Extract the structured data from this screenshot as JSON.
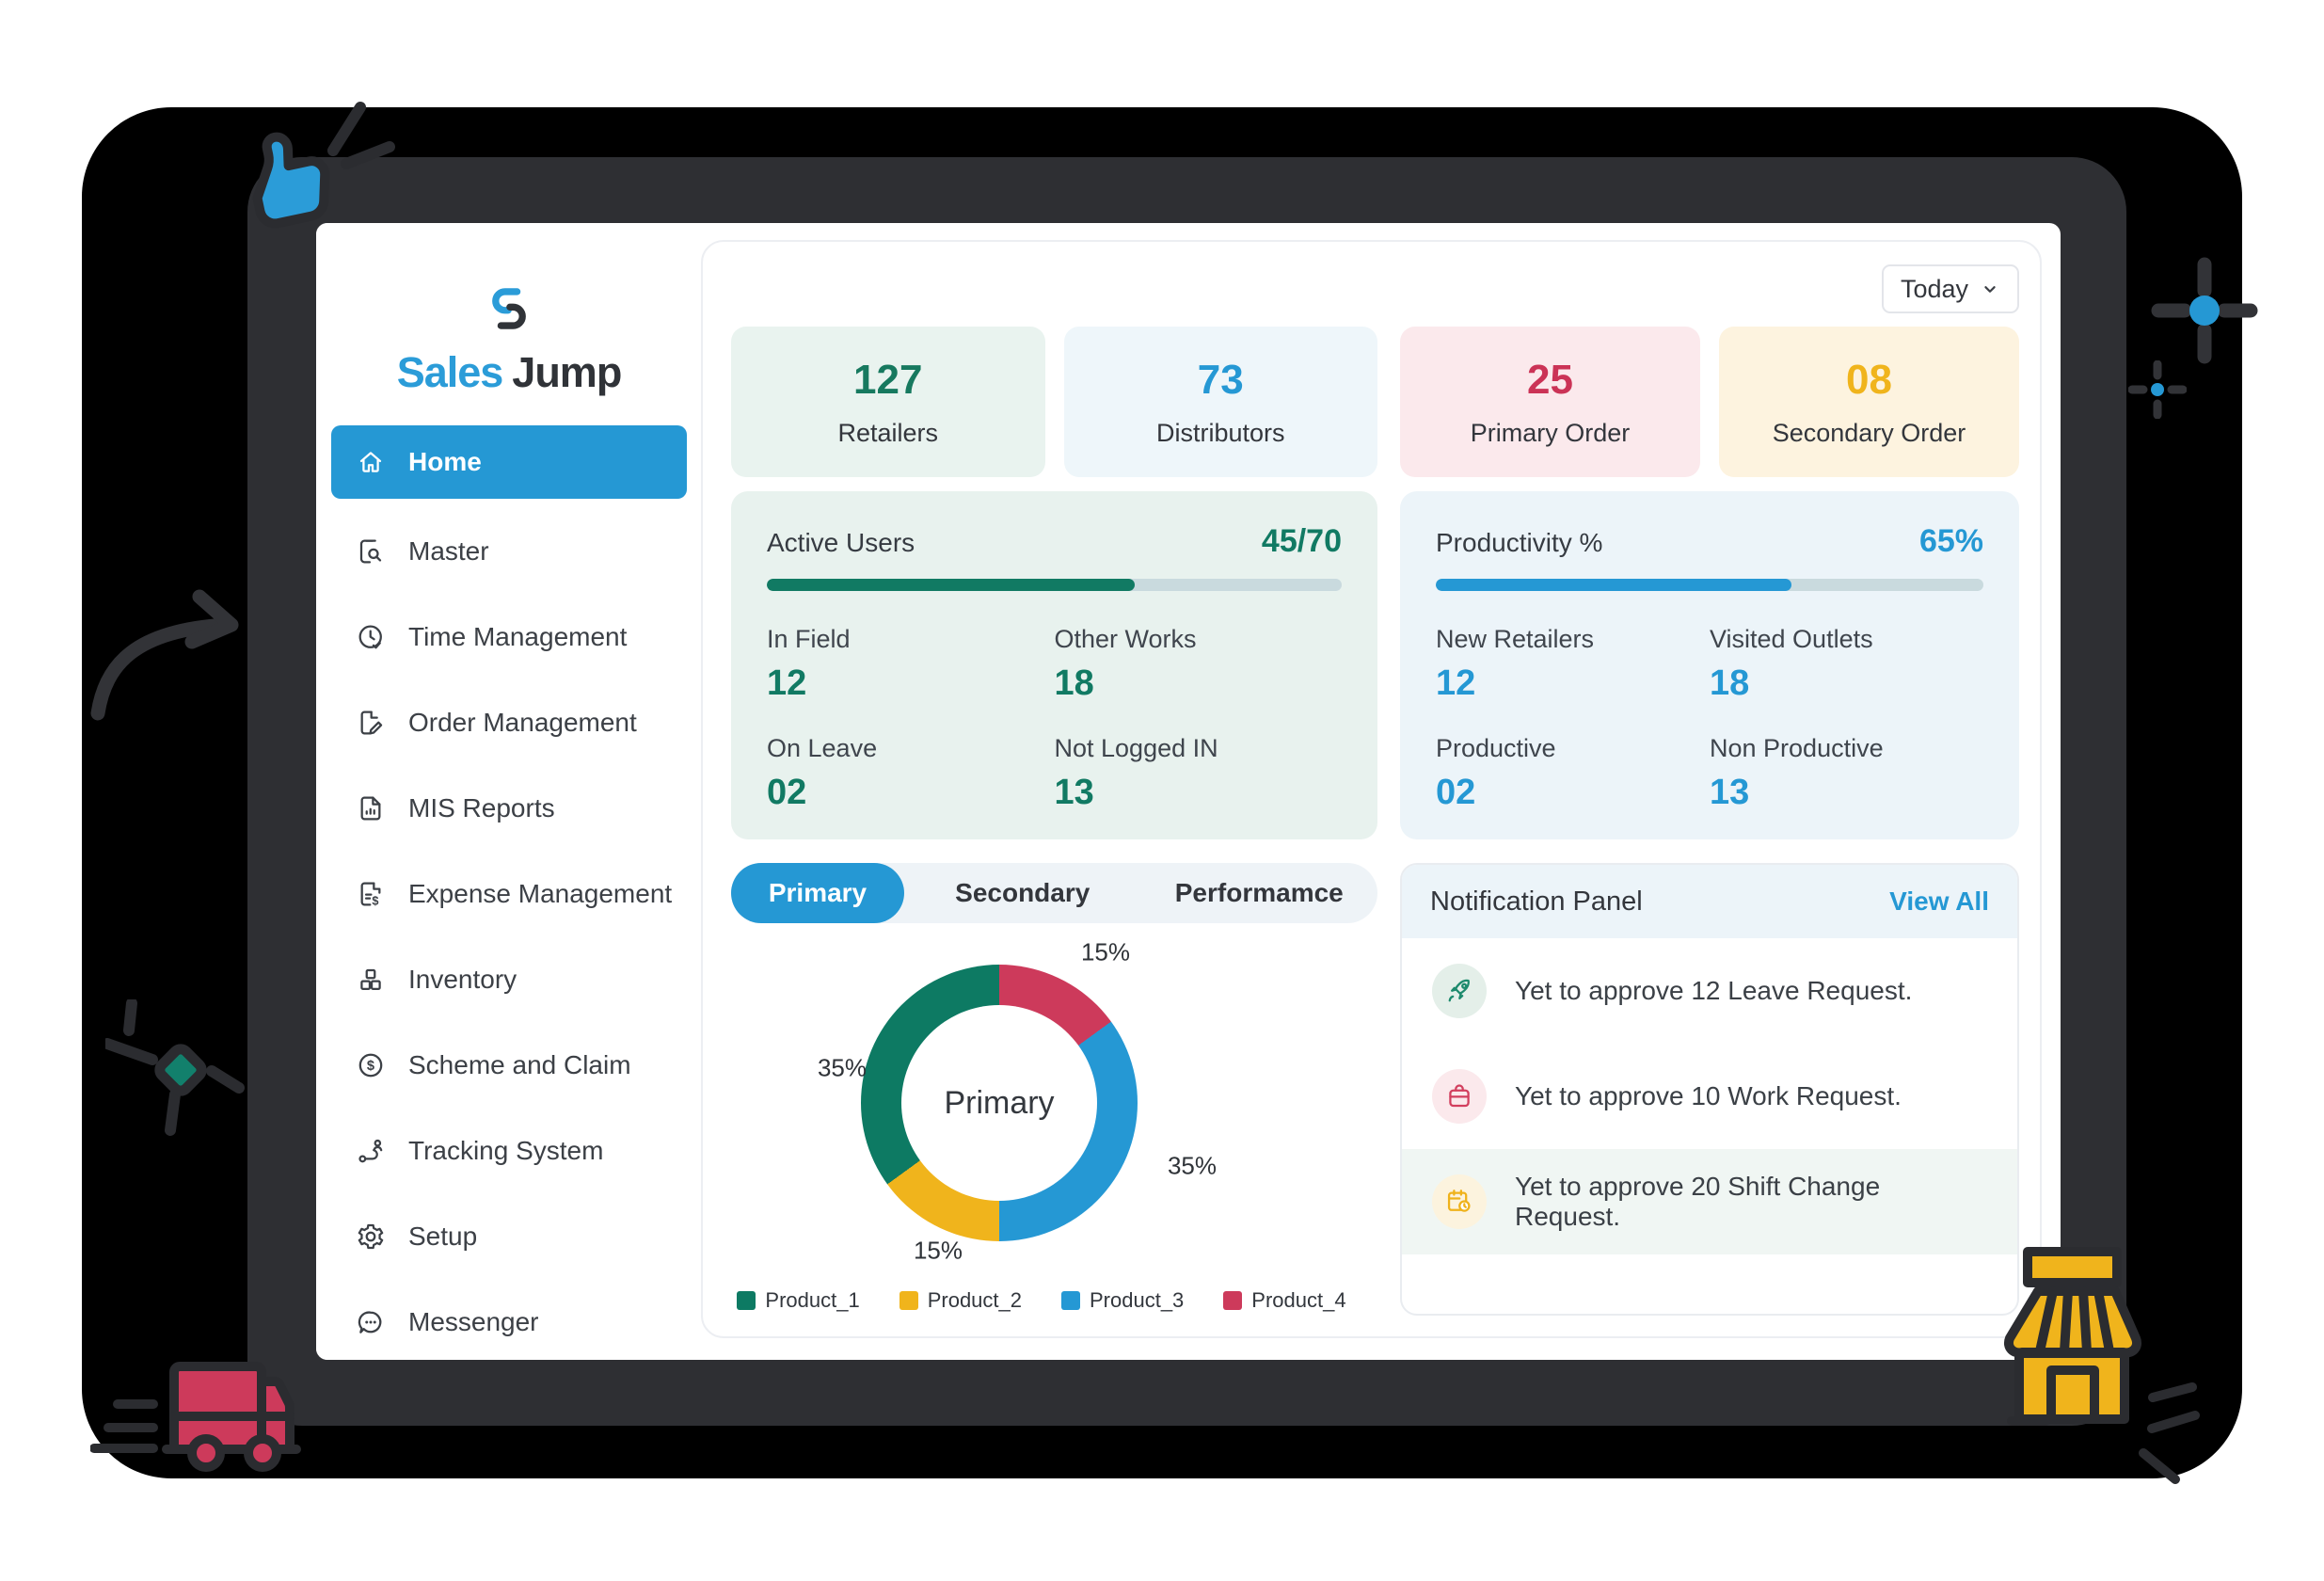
{
  "window": {
    "period_label": "Today"
  },
  "logo": {
    "part1": "Sales",
    "part2": "Jump"
  },
  "colors": {
    "accent_blue": "#2598d4",
    "accent_teal": "#117a63",
    "accent_red": "#cb3356",
    "accent_amber": "#f0b41c",
    "sidebar_active_bg": "#2598d4",
    "progress_track": "#c9dade"
  },
  "sidebar": {
    "items": [
      {
        "label": "Home",
        "icon": "home-icon",
        "active": true
      },
      {
        "label": "Master",
        "icon": "document-search-icon",
        "active": false
      },
      {
        "label": "Time Management",
        "icon": "clock-check-icon",
        "active": false
      },
      {
        "label": "Order Management",
        "icon": "document-edit-icon",
        "active": false
      },
      {
        "label": "MIS Reports",
        "icon": "report-document-icon",
        "active": false
      },
      {
        "label": "Expense Management",
        "icon": "expense-receipt-icon",
        "active": false
      },
      {
        "label": "Inventory",
        "icon": "inventory-boxes-icon",
        "active": false
      },
      {
        "label": "Scheme and Claim",
        "icon": "coin-dollar-icon",
        "active": false
      },
      {
        "label": "Tracking System",
        "icon": "route-tracking-icon",
        "active": false
      },
      {
        "label": "Setup",
        "icon": "gear-icon",
        "active": false
      },
      {
        "label": "Messenger",
        "icon": "chat-bubble-icon",
        "active": false
      }
    ]
  },
  "stat_cards": [
    {
      "value": "127",
      "label": "Retailers",
      "color": "#17795f",
      "bg": "#e9f3ef"
    },
    {
      "value": "73",
      "label": "Distributors",
      "color": "#2598d4",
      "bg": "#eef6fa"
    },
    {
      "value": "25",
      "label": "Primary Order",
      "color": "#cb3356",
      "bg": "#fbe9ec"
    },
    {
      "value": "08",
      "label": "Secondary Order",
      "color": "#f0b41c",
      "bg": "#fdf3df"
    }
  ],
  "active_users": {
    "title": "Active Users",
    "progress_label": "45/70",
    "progress_pct": 64,
    "accent": "#117a63",
    "bg": "#e8f2ee",
    "stats": [
      {
        "label": "In Field",
        "value": "12"
      },
      {
        "label": "Other Works",
        "value": "18"
      },
      {
        "label": "On Leave",
        "value": "02"
      },
      {
        "label": "Not Logged IN",
        "value": "13"
      }
    ]
  },
  "productivity": {
    "title": "Productivity %",
    "progress_label": "65%",
    "progress_pct": 65,
    "accent": "#2598d4",
    "bg": "#ecf4f9",
    "stats": [
      {
        "label": "New Retailers",
        "value": "12"
      },
      {
        "label": "Visited Outlets",
        "value": "18"
      },
      {
        "label": "Productive",
        "value": "02"
      },
      {
        "label": "Non Productive",
        "value": "13"
      }
    ]
  },
  "tabs": [
    {
      "label": "Primary",
      "active": true
    },
    {
      "label": "Secondary",
      "active": false
    },
    {
      "label": "Performamce",
      "active": false
    }
  ],
  "chart_data": {
    "type": "pie",
    "style": "donut",
    "title": "Primary order product share",
    "center_label": "Primary",
    "legend_position": "bottom",
    "series": [
      {
        "name": "Product_1",
        "value": 35,
        "color": "#0d7a63"
      },
      {
        "name": "Product_2",
        "value": 15,
        "color": "#f0b41c"
      },
      {
        "name": "Product_3",
        "value": 35,
        "color": "#2598d4"
      },
      {
        "name": "Product_4",
        "value": 15,
        "color": "#cd3a5b"
      }
    ],
    "clockwise_from_top_order": [
      "Product_4",
      "Product_3",
      "Product_2",
      "Product_1"
    ],
    "slice_labels": [
      {
        "text": "15%",
        "position": "top"
      },
      {
        "text": "35%",
        "position": "right"
      },
      {
        "text": "15%",
        "position": "bottom-left"
      },
      {
        "text": "35%",
        "position": "left"
      }
    ]
  },
  "notifications": {
    "title": "Notification Panel",
    "view_all": "View All",
    "items": [
      {
        "icon": "rocket-icon",
        "icon_color": "#1d8a6d",
        "icon_bg": "#e4efe9",
        "text": "Yet to approve 12 Leave Request.",
        "highlighted": false
      },
      {
        "icon": "briefcase-icon",
        "icon_color": "#d23f5e",
        "icon_bg": "#fbe9ec",
        "text": "Yet to approve 10 Work Request.",
        "highlighted": false
      },
      {
        "icon": "calendar-clock-icon",
        "icon_color": "#efb21b",
        "icon_bg": "#fcf3de",
        "text": "Yet to approve 20 Shift Change Request.",
        "highlighted": true
      }
    ]
  }
}
